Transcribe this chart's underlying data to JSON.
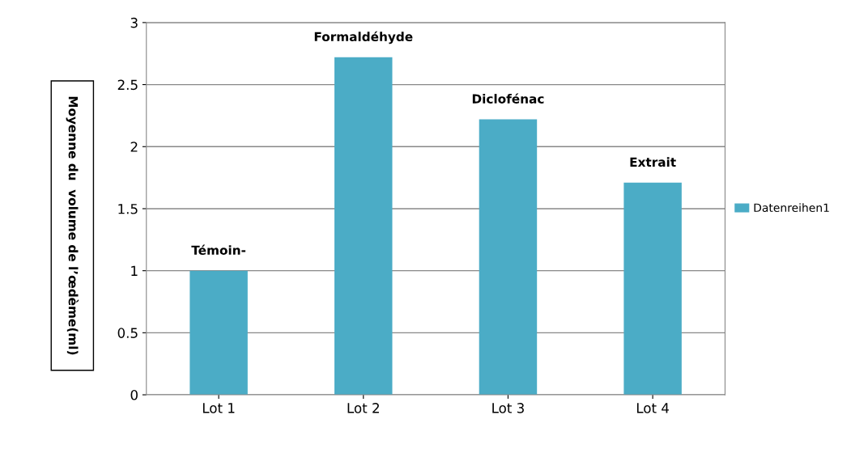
{
  "chart_data": {
    "type": "bar",
    "ylabel": "Moyenne du  volume de l’œdème(ml)",
    "categories": [
      "Lot 1",
      "Lot 2",
      "Lot 3",
      "Lot 4"
    ],
    "series": [
      {
        "name": "Datenreihen1",
        "color": "#4bacc6",
        "values": [
          1.0,
          2.72,
          2.22,
          1.71
        ]
      }
    ],
    "ylim": [
      0,
      3
    ],
    "yticks": [
      0,
      0.5,
      1,
      1.5,
      2,
      2.5,
      3
    ],
    "grid": "y",
    "legend": "right",
    "annotations": [
      {
        "text": "Témoin-",
        "x": "Lot 1",
        "y": 1.0
      },
      {
        "text": "Formaldéhyde",
        "x": "Lot 2",
        "y": 2.72
      },
      {
        "text": "Diclofénac",
        "x": "Lot 3",
        "y": 2.22
      },
      {
        "text": "Extrait",
        "x": "Lot 4",
        "y": 1.71
      }
    ]
  }
}
